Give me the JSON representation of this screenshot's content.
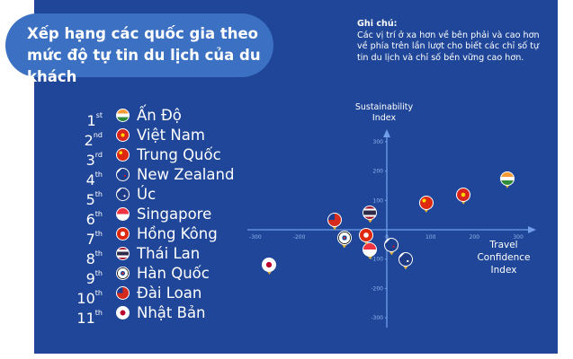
{
  "title": "Xếp hạng các quốc gia theo mức độ tự tin du lịch của du khách",
  "note": {
    "heading": "Ghi chú:",
    "text": "Các vị trí ở xa hơn về bên phải và cao hơn về phía trên lần lượt cho biết các chỉ số tự tin du lịch và chỉ số bền vững cao hơn."
  },
  "colors": {
    "background": "#1f4698",
    "title_pill": "#3b70c2",
    "axis": "#6fa0e8",
    "pin_tip": "#e0b13a"
  },
  "ranking": [
    {
      "rank": "1",
      "suffix": "st",
      "country": "Ấn Độ",
      "flag": "india-flag-icon"
    },
    {
      "rank": "2",
      "suffix": "nd",
      "country": "Việt Nam",
      "flag": "vietnam-flag-icon"
    },
    {
      "rank": "3",
      "suffix": "rd",
      "country": "Trung Quốc",
      "flag": "china-flag-icon"
    },
    {
      "rank": "4",
      "suffix": "th",
      "country": "New Zealand",
      "flag": "new-zealand-flag-icon"
    },
    {
      "rank": "5",
      "suffix": "th",
      "country": "Úc",
      "flag": "australia-flag-icon"
    },
    {
      "rank": "6",
      "suffix": "th",
      "country": "Singapore",
      "flag": "singapore-flag-icon"
    },
    {
      "rank": "7",
      "suffix": "th",
      "country": "Hồng Kông",
      "flag": "hong-kong-flag-icon"
    },
    {
      "rank": "8",
      "suffix": "th",
      "country": "Thái Lan",
      "flag": "thailand-flag-icon"
    },
    {
      "rank": "9",
      "suffix": "th",
      "country": "Hàn Quốc",
      "flag": "korea-flag-icon"
    },
    {
      "rank": "10",
      "suffix": "th",
      "country": "Đài Loan",
      "flag": "taiwan-flag-icon"
    },
    {
      "rank": "11",
      "suffix": "th",
      "country": "Nhật Bản",
      "flag": "japan-flag-icon"
    }
  ],
  "chart_data": {
    "type": "scatter",
    "xlabel": "Travel Confidence Index",
    "ylabel": "Sustainability Index",
    "xlim": [
      -300,
      300
    ],
    "ylim": [
      -300,
      300
    ],
    "x_ticks": [
      -300,
      -200,
      0,
      100,
      200,
      300
    ],
    "y_ticks": [
      300,
      200,
      100,
      -100,
      -200,
      -300
    ],
    "grid": false,
    "points": [
      {
        "country": "Ấn Độ",
        "flag": "india-flag-icon",
        "x": 275,
        "y": 175
      },
      {
        "country": "Việt Nam",
        "flag": "vietnam-flag-icon",
        "x": 175,
        "y": 120
      },
      {
        "country": "Trung Quốc",
        "flag": "china-flag-icon",
        "x": 90,
        "y": 92
      },
      {
        "country": "New Zealand",
        "flag": "new-zealand-flag-icon",
        "x": 11,
        "y": -53
      },
      {
        "country": "Úc",
        "flag": "australia-flag-icon",
        "x": 43,
        "y": -102
      },
      {
        "country": "Singapore",
        "flag": "singapore-flag-icon",
        "x": -38,
        "y": -68
      },
      {
        "country": "Hồng Kông",
        "flag": "hong-kong-flag-icon",
        "x": -47,
        "y": -17
      },
      {
        "country": "Thái Lan",
        "flag": "thailand-flag-icon",
        "x": -38,
        "y": 57
      },
      {
        "country": "Hàn Quốc",
        "flag": "korea-flag-icon",
        "x": -97,
        "y": -29
      },
      {
        "country": "Đài Loan",
        "flag": "taiwan-flag-icon",
        "x": -119,
        "y": 33
      },
      {
        "country": "Nhật Bản",
        "flag": "japan-flag-icon",
        "x": -268,
        "y": -119
      }
    ]
  }
}
